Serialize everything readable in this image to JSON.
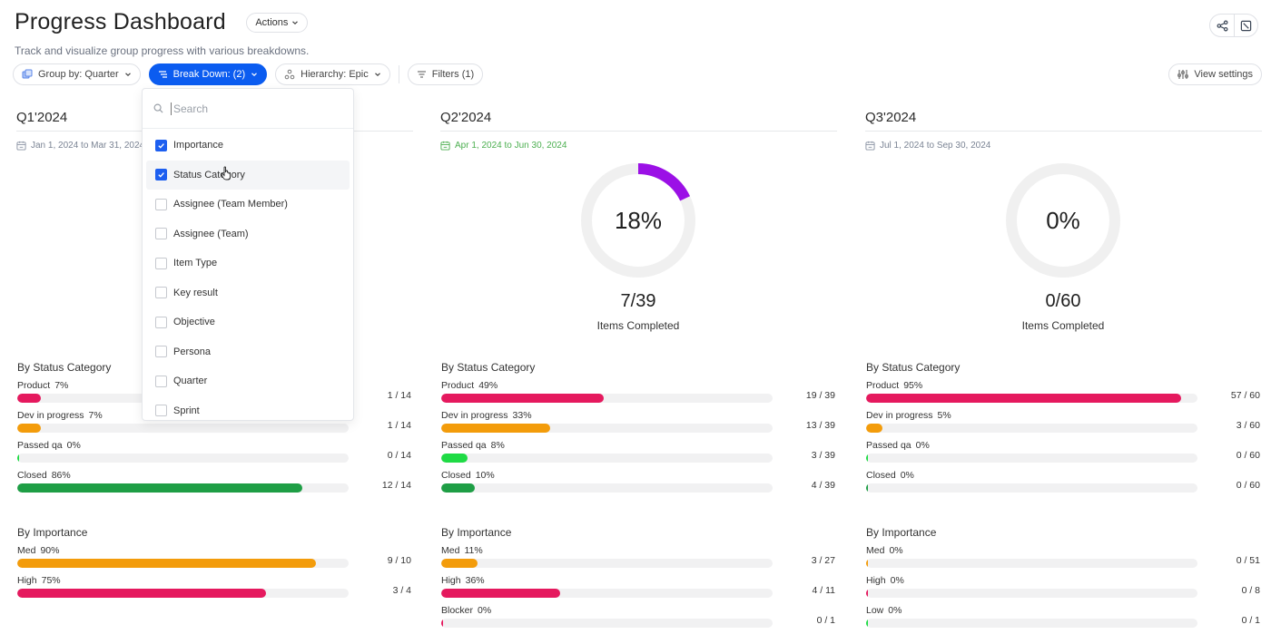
{
  "header": {
    "title": "Progress Dashboard",
    "actions_label": "Actions",
    "subtitle": "Track and visualize group progress with various breakdowns."
  },
  "top_right": {
    "share_icon": "share-icon",
    "fullscreen_icon": "expand-icon"
  },
  "toolbar": {
    "group_by": "Group by: Quarter",
    "break_down": "Break Down: (2)",
    "hierarchy": "Hierarchy: Epic",
    "filters": "Filters (1)",
    "view_settings": "View settings"
  },
  "dropdown": {
    "search_placeholder": "Search",
    "items": [
      {
        "label": "Importance",
        "checked": true
      },
      {
        "label": "Status Category",
        "checked": true
      },
      {
        "label": "Assignee (Team Member)",
        "checked": false
      },
      {
        "label": "Assignee (Team)",
        "checked": false
      },
      {
        "label": "Item Type",
        "checked": false
      },
      {
        "label": "Key result",
        "checked": false
      },
      {
        "label": "Objective",
        "checked": false
      },
      {
        "label": "Persona",
        "checked": false
      },
      {
        "label": "Quarter",
        "checked": false
      },
      {
        "label": "Sprint",
        "checked": false
      }
    ]
  },
  "colors": {
    "primary": "#0b5cf0",
    "donut": "#9b10e6",
    "product": "#e5195e",
    "dev": "#f39c0b",
    "passed": "#1fdb45",
    "closed": "#1e9e45",
    "current_date": "#4caf50"
  },
  "quarters": [
    {
      "title": "Q1'2024",
      "dates": "Jan 1, 2024 to Mar 31, 2024",
      "current": false,
      "donut": null,
      "status_title": "By Status Category",
      "status": [
        {
          "label": "Product",
          "pct": "7%",
          "value": 7,
          "count": "1 / 14",
          "color": "product"
        },
        {
          "label": "Dev in progress",
          "pct": "7%",
          "value": 7,
          "count": "1 / 14",
          "color": "dev"
        },
        {
          "label": "Passed qa",
          "pct": "0%",
          "value": 0,
          "count": "0 / 14",
          "color": "passed"
        },
        {
          "label": "Closed",
          "pct": "86%",
          "value": 86,
          "count": "12 / 14",
          "color": "closed"
        }
      ],
      "importance_title": "By Importance",
      "importance": [
        {
          "label": "Med",
          "pct": "90%",
          "value": 90,
          "count": "9 / 10",
          "color": "dev"
        },
        {
          "label": "High",
          "pct": "75%",
          "value": 75,
          "count": "3 / 4",
          "color": "product"
        }
      ]
    },
    {
      "title": "Q2'2024",
      "dates": "Apr 1, 2024 to Jun 30, 2024",
      "current": true,
      "donut": {
        "percent_label": "18%",
        "value": 18,
        "count": "7/39",
        "label": "Items Completed"
      },
      "status_title": "By Status Category",
      "status": [
        {
          "label": "Product",
          "pct": "49%",
          "value": 49,
          "count": "19 / 39",
          "color": "product"
        },
        {
          "label": "Dev in progress",
          "pct": "33%",
          "value": 33,
          "count": "13 / 39",
          "color": "dev"
        },
        {
          "label": "Passed qa",
          "pct": "8%",
          "value": 8,
          "count": "3 / 39",
          "color": "passed"
        },
        {
          "label": "Closed",
          "pct": "10%",
          "value": 10,
          "count": "4 / 39",
          "color": "closed"
        }
      ],
      "importance_title": "By Importance",
      "importance": [
        {
          "label": "Med",
          "pct": "11%",
          "value": 11,
          "count": "3 / 27",
          "color": "dev"
        },
        {
          "label": "High",
          "pct": "36%",
          "value": 36,
          "count": "4 / 11",
          "color": "product"
        },
        {
          "label": "Blocker",
          "pct": "0%",
          "value": 0,
          "count": "0 / 1",
          "color": "product"
        }
      ]
    },
    {
      "title": "Q3'2024",
      "dates": "Jul 1, 2024 to Sep 30, 2024",
      "current": false,
      "donut": {
        "percent_label": "0%",
        "value": 0,
        "count": "0/60",
        "label": "Items Completed"
      },
      "status_title": "By Status Category",
      "status": [
        {
          "label": "Product",
          "pct": "95%",
          "value": 95,
          "count": "57 / 60",
          "color": "product"
        },
        {
          "label": "Dev in progress",
          "pct": "5%",
          "value": 5,
          "count": "3 / 60",
          "color": "dev"
        },
        {
          "label": "Passed qa",
          "pct": "0%",
          "value": 0,
          "count": "0 / 60",
          "color": "passed"
        },
        {
          "label": "Closed",
          "pct": "0%",
          "value": 0,
          "count": "0 / 60",
          "color": "closed"
        }
      ],
      "importance_title": "By Importance",
      "importance": [
        {
          "label": "Med",
          "pct": "0%",
          "value": 0,
          "count": "0 / 51",
          "color": "dev"
        },
        {
          "label": "High",
          "pct": "0%",
          "value": 0,
          "count": "0 / 8",
          "color": "product"
        },
        {
          "label": "Low",
          "pct": "0%",
          "value": 0,
          "count": "0 / 1",
          "color": "passed"
        }
      ]
    }
  ]
}
